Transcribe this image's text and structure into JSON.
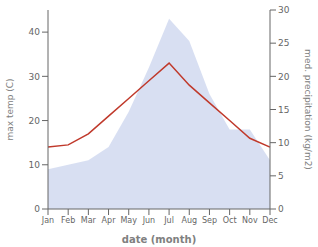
{
  "chart_data": {
    "type": "line",
    "categories": [
      "Jan",
      "Feb",
      "Mar",
      "Apr",
      "May",
      "Jun",
      "Jul",
      "Aug",
      "Sep",
      "Oct",
      "Nov",
      "Dec"
    ],
    "series": [
      {
        "type": "area",
        "color": "#b8c4e8",
        "values": [
          9,
          10,
          11,
          14,
          22,
          32,
          43,
          38,
          26,
          18,
          18,
          11
        ]
      },
      {
        "type": "line",
        "color": "#c0392b",
        "values": [
          14,
          14.5,
          17,
          21,
          25,
          29,
          33,
          28,
          24,
          20,
          16,
          14
        ]
      }
    ],
    "xlabel": "date (month)",
    "ylabel": "max temp (C)",
    "y2label": "med. precipitation (kg/m2)",
    "ylim": [
      0,
      45
    ],
    "yticks": [
      0,
      10,
      20,
      30,
      40
    ],
    "y2lim": [
      0,
      30
    ],
    "y2ticks": [
      0,
      5,
      10,
      15,
      20,
      25,
      30
    ],
    "grid": false
  }
}
